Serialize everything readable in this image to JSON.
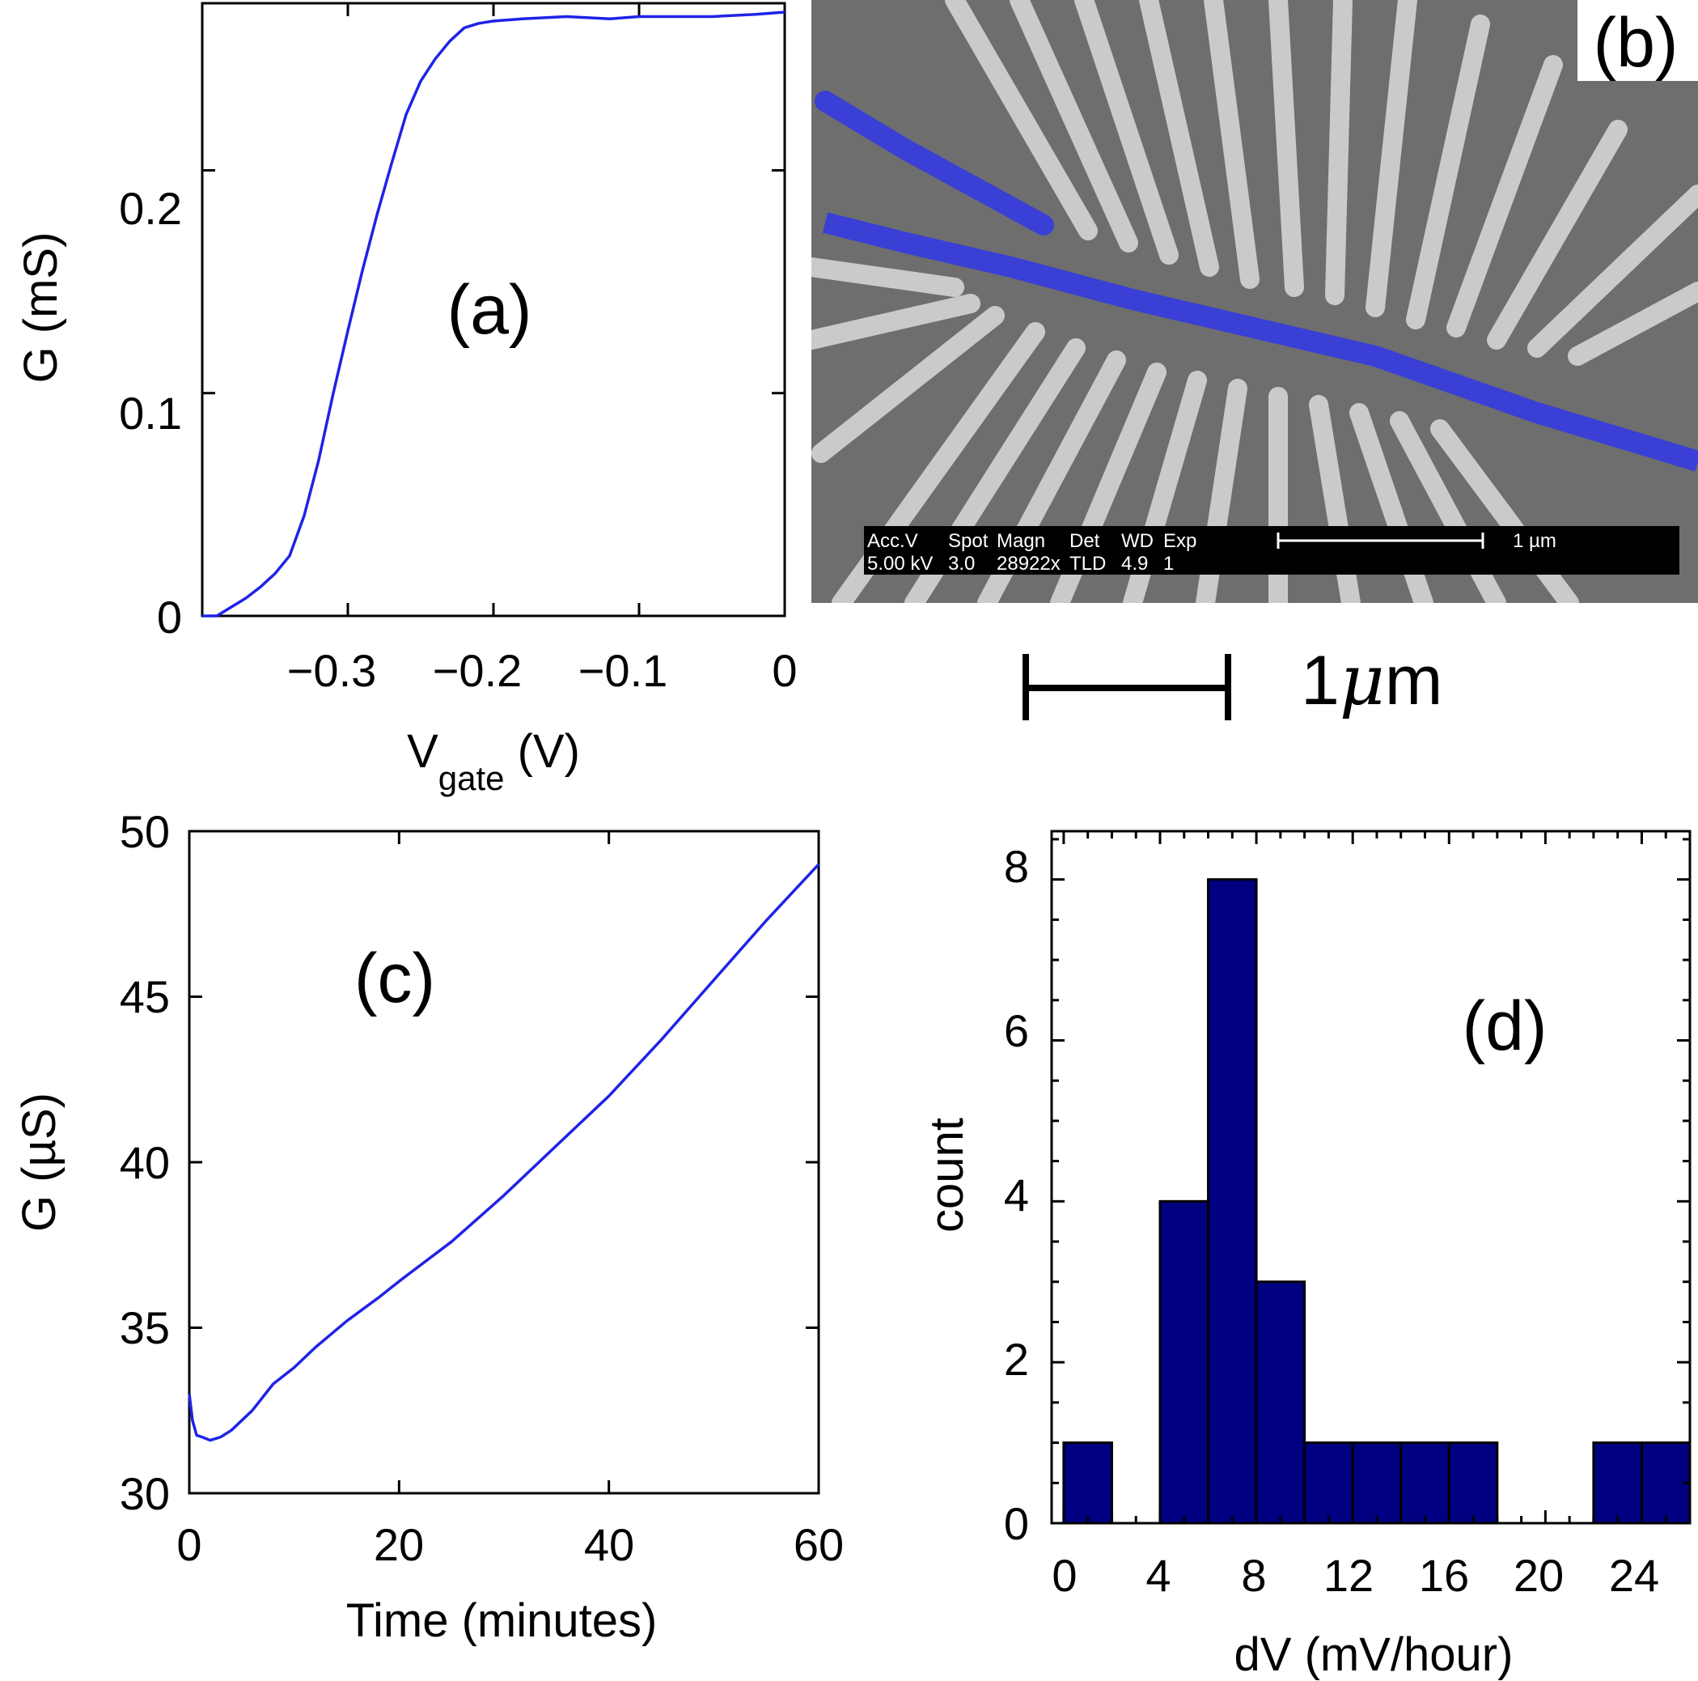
{
  "figure": {
    "panel_b": {
      "label": "(b)",
      "image_desc": "SEM micrograph of gate electrodes",
      "sem_header": [
        "Acc.V",
        "Spot",
        "Magn",
        "Det",
        "WD",
        "Exp"
      ],
      "sem_values": [
        "5.00 kV",
        "3.0",
        "28922x",
        "TLD",
        "4.9",
        "1"
      ],
      "sem_scale_label": "1 µm",
      "scalebar_label": "1",
      "scalebar_mu": "μ",
      "scalebar_unit": "m"
    }
  },
  "colors": {
    "line": "#1f23e6",
    "bar": "#000080",
    "sem_bg": "#6e6e6e",
    "electrode": "#cfcfcf",
    "highlight": "#3a3fd6"
  },
  "chart_data": [
    {
      "id": "a",
      "type": "line",
      "panel_label": "(a)",
      "xlabel": "V",
      "xlabel_sub": "gate",
      "xlabel_unit": " (V)",
      "ylabel": "G (mS)",
      "xlim": [
        -0.4,
        0
      ],
      "ylim": [
        0,
        0.275
      ],
      "xticks": [
        -0.3,
        -0.2,
        -0.1,
        0
      ],
      "xticklabels": [
        "−0.3",
        "−0.2",
        "−0.1",
        "0"
      ],
      "yticks": [
        0,
        0.1,
        0.2
      ],
      "yticklabels": [
        "0",
        "0.1",
        "0.2"
      ],
      "x": [
        -0.4,
        -0.39,
        -0.385,
        -0.37,
        -0.36,
        -0.35,
        -0.34,
        -0.33,
        -0.32,
        -0.31,
        -0.3,
        -0.29,
        -0.28,
        -0.27,
        -0.26,
        -0.25,
        -0.24,
        -0.23,
        -0.22,
        -0.21,
        -0.2,
        -0.18,
        -0.15,
        -0.12,
        -0.1,
        -0.07,
        -0.05,
        -0.02,
        0
      ],
      "y": [
        0,
        0,
        0.002,
        0.008,
        0.013,
        0.019,
        0.027,
        0.045,
        0.07,
        0.1,
        0.128,
        0.155,
        0.18,
        0.203,
        0.225,
        0.24,
        0.25,
        0.258,
        0.264,
        0.266,
        0.267,
        0.268,
        0.269,
        0.268,
        0.269,
        0.269,
        0.269,
        0.27,
        0.271
      ]
    },
    {
      "id": "c",
      "type": "line",
      "panel_label": "(c)",
      "xlabel": "Time (minutes)",
      "ylabel": "G (µS)",
      "xlim": [
        0,
        60
      ],
      "ylim": [
        30,
        50
      ],
      "xticks": [
        0,
        20,
        40,
        60
      ],
      "xticklabels": [
        "0",
        "20",
        "40",
        "60"
      ],
      "yticks": [
        30,
        35,
        40,
        45,
        50
      ],
      "yticklabels": [
        "30",
        "35",
        "40",
        "45",
        "50"
      ],
      "x": [
        0,
        0.3,
        0.7,
        1.2,
        2,
        3,
        4,
        6,
        8,
        10,
        12,
        15,
        18,
        20,
        25,
        30,
        35,
        40,
        45,
        50,
        55,
        60
      ],
      "y": [
        33.0,
        32.2,
        31.75,
        31.7,
        31.6,
        31.7,
        31.9,
        32.5,
        33.3,
        33.8,
        34.4,
        35.2,
        35.9,
        36.4,
        37.6,
        39.0,
        40.5,
        42.0,
        43.7,
        45.5,
        47.3,
        49.0
      ]
    },
    {
      "id": "d",
      "type": "bar",
      "panel_label": "(d)",
      "xlabel": "dV (mV/hour)",
      "ylabel": "count",
      "xlim": [
        -0.5,
        26
      ],
      "ylim": [
        0,
        8.6
      ],
      "bin_width": 2,
      "bin_starts": [
        0,
        2,
        4,
        6,
        8,
        10,
        12,
        14,
        16,
        18,
        20,
        22,
        24
      ],
      "counts": [
        1,
        0,
        4,
        8,
        3,
        1,
        1,
        1,
        1,
        0,
        0,
        1,
        1
      ],
      "xticks": [
        0,
        4,
        8,
        12,
        16,
        20,
        24
      ],
      "xticklabels": [
        "0",
        "4",
        "8",
        "12",
        "16",
        "20",
        "24"
      ],
      "yticks": [
        0,
        2,
        4,
        6,
        8
      ],
      "yticklabels": [
        "0",
        "2",
        "4",
        "6",
        "8"
      ]
    }
  ]
}
